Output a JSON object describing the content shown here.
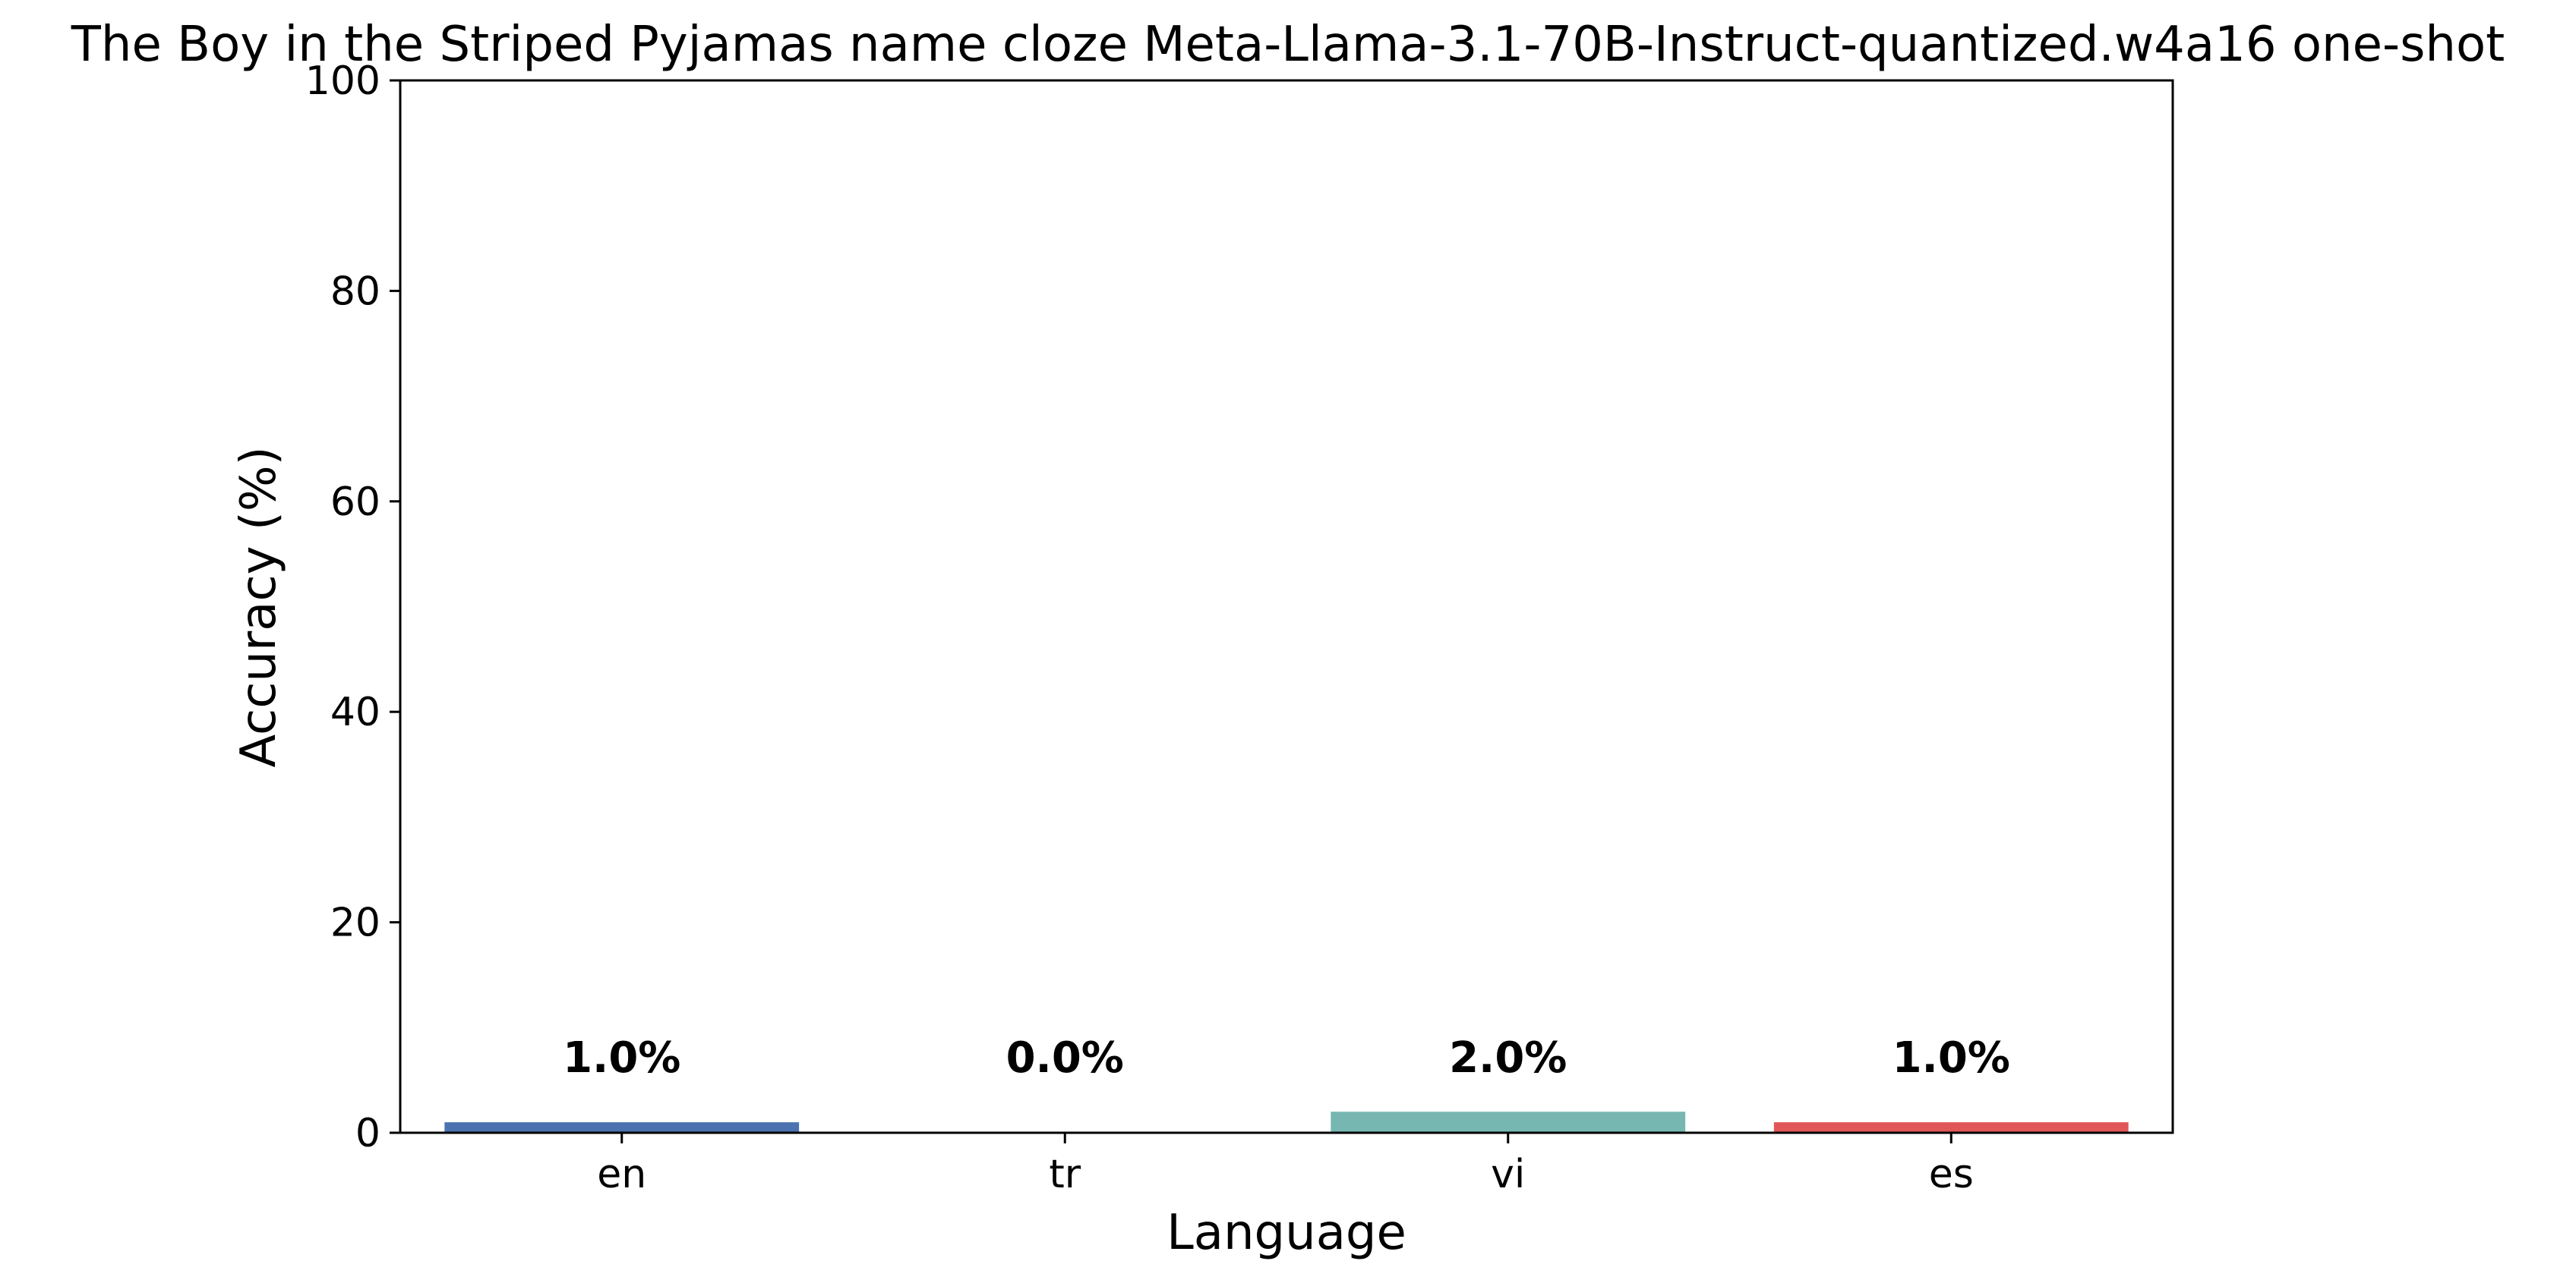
{
  "chart_data": {
    "type": "bar",
    "title": "The Boy in the Striped Pyjamas name cloze Meta-Llama-3.1-70B-Instruct-quantized.w4a16 one-shot",
    "xlabel": "Language",
    "ylabel": "Accuracy (%)",
    "categories": [
      "en",
      "tr",
      "vi",
      "es"
    ],
    "values": [
      1.0,
      0.0,
      2.0,
      1.0
    ],
    "value_labels": [
      "1.0%",
      "0.0%",
      "2.0%",
      "1.0%"
    ],
    "colors": [
      "#4c72b0",
      "#dd8452",
      "#76b7b2",
      "#e15759"
    ],
    "ylim": [
      0,
      100
    ],
    "yticks": [
      0,
      20,
      40,
      60,
      80,
      100
    ],
    "grid": false,
    "legend": false
  }
}
